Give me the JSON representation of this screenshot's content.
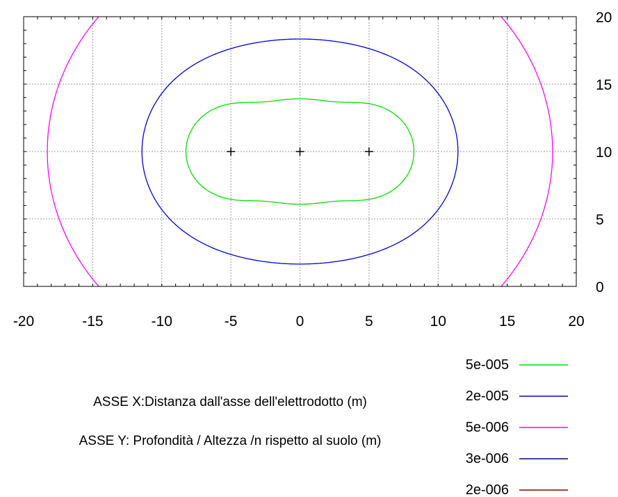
{
  "chart_data": {
    "type": "contour",
    "xlim": [
      -20,
      20
    ],
    "ylim": [
      0,
      20
    ],
    "x_ticks": [
      -20,
      -15,
      -10,
      -5,
      0,
      5,
      10,
      15,
      20
    ],
    "y_ticks": [
      0,
      5,
      10,
      15,
      20
    ],
    "y_axis_side": "right",
    "grid": true,
    "grid_style": "dotted",
    "axis_notes": [
      "ASSE X:Distanza dall'asse dell'elettrodotto (m)",
      "ASSE Y: Profondità / Altezza /n rispetto al suolo (m)"
    ],
    "conductors": [
      [
        -5,
        10
      ],
      [
        0,
        10
      ],
      [
        5,
        10
      ]
    ],
    "legend_position": "bottom-right",
    "levels": [
      {
        "label": "5e-005",
        "value": 5e-05,
        "color": "#00e000"
      },
      {
        "label": "2e-005",
        "value": 2e-05,
        "color": "#0000e0"
      },
      {
        "label": "5e-006",
        "value": 5e-06,
        "color": "#ff00ff"
      },
      {
        "label": "3e-006",
        "value": 3e-06,
        "color": "#000080"
      },
      {
        "label": "2e-006",
        "value": 2e-06,
        "color": "#8b0000"
      }
    ]
  }
}
